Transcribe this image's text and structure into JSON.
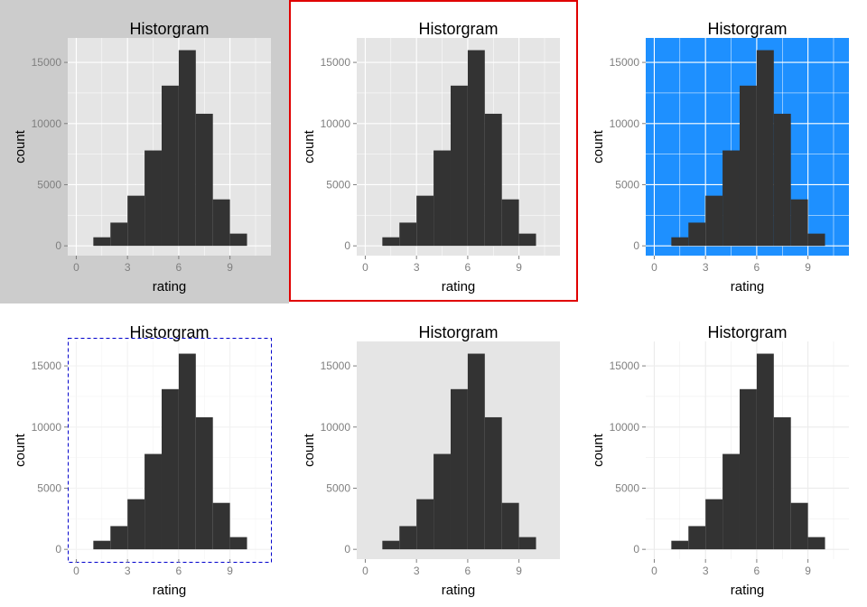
{
  "chart_data": [
    {
      "type": "bar",
      "title": "Historgram",
      "xlabel": "rating",
      "ylabel": "count",
      "x_ticks": [
        "0",
        "3",
        "6",
        "9"
      ],
      "y_ticks": [
        "0",
        "5000",
        "10000",
        "15000"
      ],
      "xlim": [
        -0.5,
        11.4
      ],
      "ylim": [
        -800,
        17000
      ],
      "bins": [
        [
          1,
          2
        ],
        [
          2,
          3
        ],
        [
          3,
          4
        ],
        [
          4,
          5
        ],
        [
          5,
          6
        ],
        [
          6,
          7
        ],
        [
          7,
          8
        ],
        [
          8,
          9
        ],
        [
          9,
          10
        ]
      ],
      "values": [
        700,
        1900,
        4100,
        7800,
        13100,
        16000,
        10800,
        3800,
        1000
      ],
      "theme": {
        "plot_background": "#cccccc",
        "panel_background": "#e5e5e5",
        "grid": true,
        "grid_color": "#ffffff",
        "border": "none",
        "bar_color": "#333333"
      }
    },
    {
      "type": "bar",
      "title": "Historgram",
      "xlabel": "rating",
      "ylabel": "count",
      "x_ticks": [
        "0",
        "3",
        "6",
        "9"
      ],
      "y_ticks": [
        "0",
        "5000",
        "10000",
        "15000"
      ],
      "xlim": [
        -0.5,
        11.4
      ],
      "ylim": [
        -800,
        17000
      ],
      "bins": [
        [
          1,
          2
        ],
        [
          2,
          3
        ],
        [
          3,
          4
        ],
        [
          4,
          5
        ],
        [
          5,
          6
        ],
        [
          6,
          7
        ],
        [
          7,
          8
        ],
        [
          8,
          9
        ],
        [
          9,
          10
        ]
      ],
      "values": [
        700,
        1900,
        4100,
        7800,
        13100,
        16000,
        10800,
        3800,
        1000
      ],
      "theme": {
        "plot_background": "#ffffff",
        "panel_background": "#e5e5e5",
        "grid": true,
        "grid_color": "#ffffff",
        "border": "solid",
        "border_color": "#e00000",
        "bar_color": "#333333"
      }
    },
    {
      "type": "bar",
      "title": "Historgram",
      "xlabel": "rating",
      "ylabel": "count",
      "x_ticks": [
        "0",
        "3",
        "6",
        "9"
      ],
      "y_ticks": [
        "0",
        "5000",
        "10000",
        "15000"
      ],
      "xlim": [
        -0.5,
        11.4
      ],
      "ylim": [
        -800,
        17000
      ],
      "bins": [
        [
          1,
          2
        ],
        [
          2,
          3
        ],
        [
          3,
          4
        ],
        [
          4,
          5
        ],
        [
          5,
          6
        ],
        [
          6,
          7
        ],
        [
          7,
          8
        ],
        [
          8,
          9
        ],
        [
          9,
          10
        ]
      ],
      "values": [
        700,
        1900,
        4100,
        7800,
        13100,
        16000,
        10800,
        3800,
        1000
      ],
      "theme": {
        "plot_background": "#ffffff",
        "panel_background": "#1e90ff",
        "grid": true,
        "grid_color": "#ffffff",
        "border": "none",
        "bar_color": "#333333"
      }
    },
    {
      "type": "bar",
      "title": "Historgram",
      "xlabel": "rating",
      "ylabel": "count",
      "x_ticks": [
        "0",
        "3",
        "6",
        "9"
      ],
      "y_ticks": [
        "0",
        "5000",
        "10000",
        "15000"
      ],
      "xlim": [
        -0.5,
        11.4
      ],
      "ylim": [
        -800,
        17000
      ],
      "bins": [
        [
          1,
          2
        ],
        [
          2,
          3
        ],
        [
          3,
          4
        ],
        [
          4,
          5
        ],
        [
          5,
          6
        ],
        [
          6,
          7
        ],
        [
          7,
          8
        ],
        [
          8,
          9
        ],
        [
          9,
          10
        ]
      ],
      "values": [
        700,
        1900,
        4100,
        7800,
        13100,
        16000,
        10800,
        3800,
        1000
      ],
      "theme": {
        "plot_background": "#ffffff",
        "panel_background": "#ffffff",
        "grid": true,
        "grid_color": "#f2f2f2",
        "border": "dashed",
        "border_color": "#0000cc",
        "bar_color": "#333333"
      }
    },
    {
      "type": "bar",
      "title": "Historgram",
      "xlabel": "rating",
      "ylabel": "count",
      "x_ticks": [
        "0",
        "3",
        "6",
        "9"
      ],
      "y_ticks": [
        "0",
        "5000",
        "10000",
        "15000"
      ],
      "xlim": [
        -0.5,
        11.4
      ],
      "ylim": [
        -800,
        17000
      ],
      "bins": [
        [
          1,
          2
        ],
        [
          2,
          3
        ],
        [
          3,
          4
        ],
        [
          4,
          5
        ],
        [
          5,
          6
        ],
        [
          6,
          7
        ],
        [
          7,
          8
        ],
        [
          8,
          9
        ],
        [
          9,
          10
        ]
      ],
      "values": [
        700,
        1900,
        4100,
        7800,
        13100,
        16000,
        10800,
        3800,
        1000
      ],
      "theme": {
        "plot_background": "#ffffff",
        "panel_background": "#e5e5e5",
        "grid": false,
        "border": "none",
        "bar_color": "#333333"
      }
    },
    {
      "type": "bar",
      "title": "Historgram",
      "xlabel": "rating",
      "ylabel": "count",
      "x_ticks": [
        "0",
        "3",
        "6",
        "9"
      ],
      "y_ticks": [
        "0",
        "5000",
        "10000",
        "15000"
      ],
      "xlim": [
        -0.5,
        11.4
      ],
      "ylim": [
        -800,
        17000
      ],
      "bins": [
        [
          1,
          2
        ],
        [
          2,
          3
        ],
        [
          3,
          4
        ],
        [
          4,
          5
        ],
        [
          5,
          6
        ],
        [
          6,
          7
        ],
        [
          7,
          8
        ],
        [
          8,
          9
        ],
        [
          9,
          10
        ]
      ],
      "values": [
        700,
        1900,
        4100,
        7800,
        13100,
        16000,
        10800,
        3800,
        1000
      ],
      "theme": {
        "plot_background": "#ffffff",
        "panel_background": "#ffffff",
        "grid": true,
        "grid_color": "#ebebeb",
        "border": "none",
        "bar_color": "#333333"
      }
    }
  ]
}
